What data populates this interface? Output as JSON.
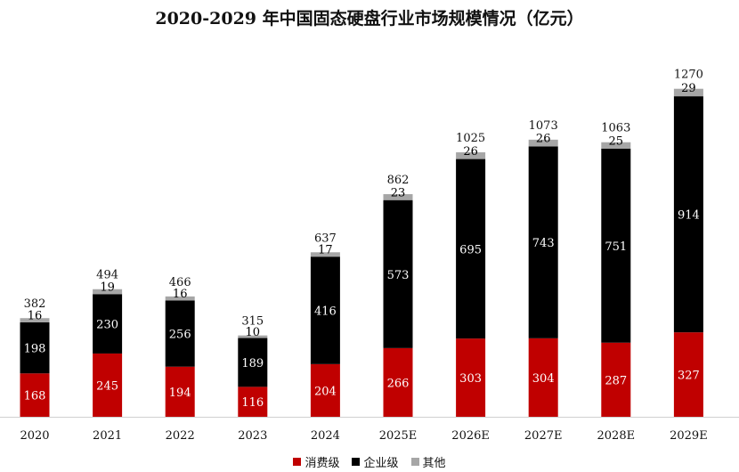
{
  "chart_data": {
    "type": "bar",
    "stacked": true,
    "title": "2020-2029 年中国固态硬盘行业市场规模情况（亿元）",
    "categories": [
      "2020",
      "2021",
      "2022",
      "2023",
      "2024",
      "2025E",
      "2026E",
      "2027E",
      "2028E",
      "2029E"
    ],
    "series": [
      {
        "name": "消费级",
        "color": "#c00000",
        "label_color": "#ffffff",
        "values": [
          168,
          245,
          194,
          116,
          204,
          266,
          303,
          304,
          287,
          327
        ]
      },
      {
        "name": "企业级",
        "color": "#000000",
        "label_color": "#ffffff",
        "values": [
          198,
          230,
          256,
          189,
          416,
          573,
          695,
          743,
          751,
          914
        ]
      },
      {
        "name": "其他",
        "color": "#a6a6a6",
        "label_color": "#000000",
        "values": [
          16,
          19,
          16,
          10,
          17,
          23,
          26,
          26,
          25,
          29
        ]
      }
    ],
    "totals": [
      382,
      494,
      466,
      315,
      637,
      862,
      1025,
      1073,
      1063,
      1270
    ],
    "ylim": [
      0,
      1300
    ],
    "grid": false,
    "legend": "bottom"
  }
}
